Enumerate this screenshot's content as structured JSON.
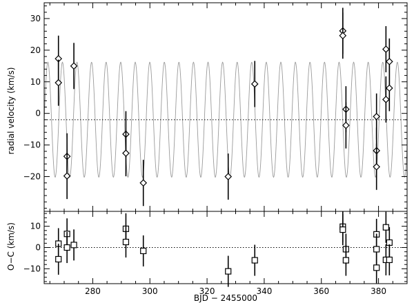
{
  "chart_data": [
    {
      "type": "scatter",
      "panel": "top",
      "xlabel": "",
      "ylabel": "radial velocity (km/s)",
      "xlim": [
        263,
        390
      ],
      "ylim": [
        -31,
        35
      ],
      "yticks": [
        -20,
        -10,
        0,
        10,
        20,
        30
      ],
      "ytick_labels": [
        "−20",
        "−10",
        "0",
        "10",
        "20",
        "30"
      ],
      "systemic_velocity": -2,
      "marker": "diamond",
      "model": {
        "amplitude": 18.2,
        "offset": -2,
        "period": 5.095,
        "phase_x": 264.3
      },
      "points": [
        {
          "x": 268.0,
          "y": 17.3,
          "err": 7.3
        },
        {
          "x": 268.0,
          "y": 9.7,
          "err": 7.3
        },
        {
          "x": 271.0,
          "y": -13.6,
          "err": 7.3
        },
        {
          "x": 271.0,
          "y": -19.8,
          "err": 7.3
        },
        {
          "x": 273.4,
          "y": 15.0,
          "err": 7.3
        },
        {
          "x": 291.6,
          "y": -6.6,
          "err": 7.3
        },
        {
          "x": 291.6,
          "y": -12.6,
          "err": 7.3
        },
        {
          "x": 297.7,
          "y": -22.0,
          "err": 7.3
        },
        {
          "x": 327.4,
          "y": -20.0,
          "err": 7.3
        },
        {
          "x": 336.7,
          "y": 9.3,
          "err": 7.3
        },
        {
          "x": 367.5,
          "y": 26.1,
          "err": 7.3
        },
        {
          "x": 367.5,
          "y": 24.6,
          "err": 7.3
        },
        {
          "x": 368.6,
          "y": 1.3,
          "err": 7.3
        },
        {
          "x": 368.6,
          "y": -3.8,
          "err": 7.3
        },
        {
          "x": 379.3,
          "y": -1.0,
          "err": 7.3
        },
        {
          "x": 379.3,
          "y": -11.8,
          "err": 7.3
        },
        {
          "x": 379.3,
          "y": -16.9,
          "err": 7.3
        },
        {
          "x": 382.6,
          "y": 20.3,
          "err": 7.3
        },
        {
          "x": 382.6,
          "y": 4.4,
          "err": 7.3
        },
        {
          "x": 383.8,
          "y": 16.4,
          "err": 7.3
        },
        {
          "x": 383.8,
          "y": 8.0,
          "err": 7.3
        }
      ]
    },
    {
      "type": "scatter",
      "panel": "bottom",
      "xlabel": "BJD − 2455000",
      "ylabel": "O−C (km/s)",
      "xlim": [
        263,
        390
      ],
      "ylim": [
        -17,
        17
      ],
      "xticks": [
        280,
        300,
        320,
        340,
        360,
        380
      ],
      "xtick_labels": [
        "280",
        "300",
        "320",
        "340",
        "360",
        "380"
      ],
      "yticks": [
        -10,
        0,
        10
      ],
      "ytick_labels": [
        "−10",
        "0",
        "10"
      ],
      "marker": "square",
      "points": [
        {
          "x": 268.0,
          "y": 1.8,
          "err": 7.3
        },
        {
          "x": 268.0,
          "y": -5.5,
          "err": 7.3
        },
        {
          "x": 271.0,
          "y": 6.4,
          "err": 7.3
        },
        {
          "x": 271.0,
          "y": 0.0,
          "err": 7.3
        },
        {
          "x": 273.4,
          "y": 1.2,
          "err": 7.3
        },
        {
          "x": 291.6,
          "y": 8.8,
          "err": 7.3
        },
        {
          "x": 291.6,
          "y": 2.6,
          "err": 7.3
        },
        {
          "x": 297.7,
          "y": -1.6,
          "err": 7.3
        },
        {
          "x": 327.4,
          "y": -11.2,
          "err": 7.3
        },
        {
          "x": 336.7,
          "y": -6.0,
          "err": 7.3
        },
        {
          "x": 367.5,
          "y": 9.8,
          "err": 7.3
        },
        {
          "x": 367.5,
          "y": 8.4,
          "err": 7.3
        },
        {
          "x": 368.6,
          "y": -0.8,
          "err": 7.3
        },
        {
          "x": 368.6,
          "y": -6.0,
          "err": 7.3
        },
        {
          "x": 379.3,
          "y": 6.2,
          "err": 7.3
        },
        {
          "x": 379.3,
          "y": -0.8,
          "err": 7.3
        },
        {
          "x": 379.3,
          "y": -9.5,
          "err": 7.3
        },
        {
          "x": 382.6,
          "y": 9.5,
          "err": 7.3
        },
        {
          "x": 382.6,
          "y": -5.8,
          "err": 7.3
        },
        {
          "x": 383.8,
          "y": 2.3,
          "err": 7.3
        },
        {
          "x": 383.8,
          "y": -5.8,
          "err": 7.3
        }
      ]
    }
  ]
}
